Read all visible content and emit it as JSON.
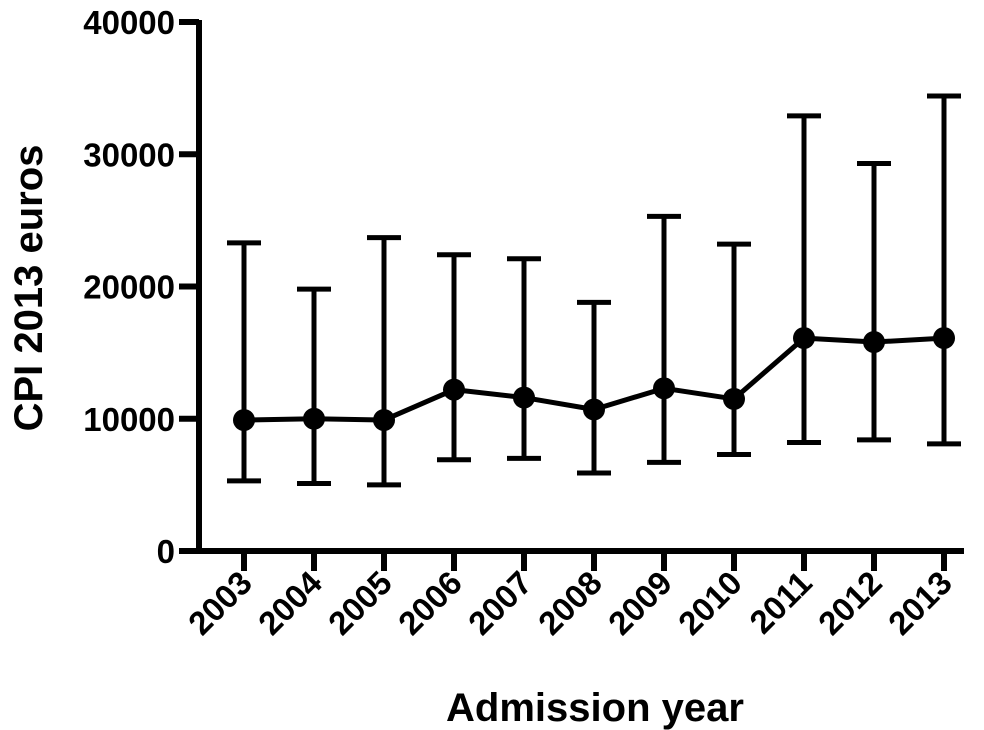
{
  "chart_data": {
    "type": "line",
    "title": "",
    "xlabel": "Admission year",
    "ylabel": "CPI 2013 euros",
    "ylim": [
      0,
      40000
    ],
    "yticks": [
      0,
      10000,
      20000,
      30000,
      40000
    ],
    "ytick_labels": [
      "0",
      "10000",
      "20000",
      "30000",
      "40000"
    ],
    "grid": false,
    "legend": "none",
    "categories": [
      "2003",
      "2004",
      "2005",
      "2006",
      "2007",
      "2008",
      "2009",
      "2010",
      "2011",
      "2012",
      "2013"
    ],
    "series": [
      {
        "values": [
          9900,
          10000,
          9900,
          12200,
          11600,
          10700,
          12300,
          11500,
          16100,
          15800,
          16100
        ],
        "error_low": [
          5300,
          5100,
          5000,
          6900,
          7000,
          5900,
          6700,
          7300,
          8200,
          8400,
          8100
        ],
        "error_high": [
          23300,
          19800,
          23700,
          22400,
          22100,
          18800,
          25300,
          23200,
          32900,
          29300,
          34400
        ],
        "color": "#000000"
      }
    ]
  }
}
